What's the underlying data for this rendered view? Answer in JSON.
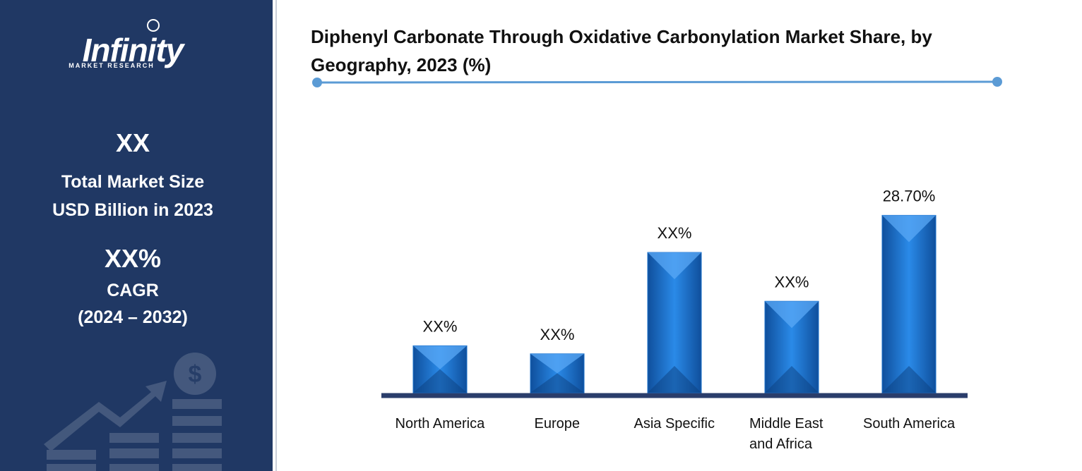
{
  "sidebar": {
    "logo": "Infinity",
    "logo_sub": "MARKET RESEARCH",
    "market_size": "XX",
    "market_size_label": [
      "Total Market Size",
      "USD Billion in 2023"
    ],
    "cagr": "XX%",
    "cagr_label": "CAGR",
    "cagr_period": "(2024 – 2032)"
  },
  "chart_data": {
    "type": "bar",
    "title": "Diphenyl Carbonate Through Oxidative Carbonylation Market Share, by Geography, 2023 (%)",
    "categories": [
      "North America",
      "Europe",
      "Asia Specific",
      "Middle East and Africa",
      "South America"
    ],
    "values": [
      7.6,
      6.3,
      22.7,
      14.8,
      28.7
    ],
    "value_labels": [
      "XX%",
      "XX%",
      "XX%",
      "XX%",
      "28.70%"
    ],
    "color": "#1a6fc9",
    "ylim": [
      0,
      30
    ]
  }
}
